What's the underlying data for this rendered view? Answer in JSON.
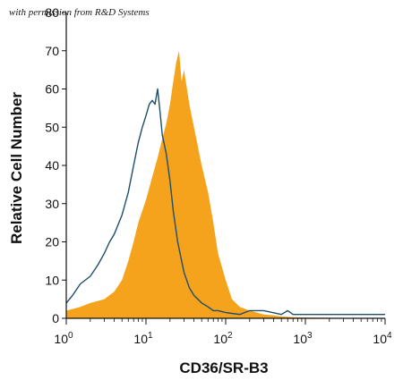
{
  "watermark": "with permission from R&D Systems",
  "chart_data": {
    "type": "area",
    "xscale": "log",
    "xlim": [
      1,
      10000
    ],
    "ylim": [
      0,
      80
    ],
    "xlabel": "CD36/SR-B3",
    "ylabel": "Relative Cell Number",
    "yticks": [
      0,
      10,
      20,
      30,
      40,
      50,
      60,
      70,
      80
    ],
    "xticks": [
      {
        "value": 1,
        "base": "10",
        "exp": "0"
      },
      {
        "value": 10,
        "base": "10",
        "exp": "1"
      },
      {
        "value": 100,
        "base": "10",
        "exp": "2"
      },
      {
        "value": 1000,
        "base": "10",
        "exp": "3"
      },
      {
        "value": 10000,
        "base": "10",
        "exp": "4"
      }
    ],
    "series": [
      {
        "style": "filled",
        "color": "#f5a31c",
        "x": [
          1,
          1.5,
          2,
          3,
          4,
          5,
          6,
          7,
          8,
          10,
          12,
          14,
          16,
          18,
          20,
          22,
          24,
          26,
          28,
          30,
          35,
          40,
          50,
          60,
          70,
          80,
          100,
          120,
          150,
          200,
          300,
          400,
          500,
          700,
          1000,
          10000
        ],
        "y": [
          2,
          3,
          4,
          5,
          7,
          10,
          15,
          20,
          25,
          31,
          37,
          42,
          47,
          51,
          56,
          62,
          67,
          70,
          62,
          65,
          56,
          50,
          40,
          33,
          25,
          17,
          10,
          5,
          3,
          2,
          1,
          0.8,
          0.5,
          0.3,
          0.2,
          0
        ]
      },
      {
        "style": "outline",
        "color": "#1d4e6b",
        "x": [
          1,
          1.2,
          1.5,
          2,
          2.5,
          3,
          3.5,
          4,
          5,
          6,
          7,
          8,
          9,
          10,
          11,
          12,
          13,
          14,
          15,
          16,
          18,
          20,
          22,
          25,
          28,
          30,
          35,
          40,
          50,
          60,
          70,
          80,
          100,
          150,
          200,
          300,
          500,
          600,
          700,
          1000,
          10000
        ],
        "y": [
          4,
          6,
          9,
          11,
          14,
          17,
          20,
          22,
          27,
          33,
          40,
          46,
          50,
          53,
          56,
          57,
          56,
          60,
          54,
          48,
          43,
          36,
          28,
          20,
          15,
          12,
          8,
          6,
          4,
          3,
          2,
          2,
          1.5,
          1,
          2,
          2,
          1,
          2,
          1,
          1,
          1
        ]
      }
    ]
  }
}
